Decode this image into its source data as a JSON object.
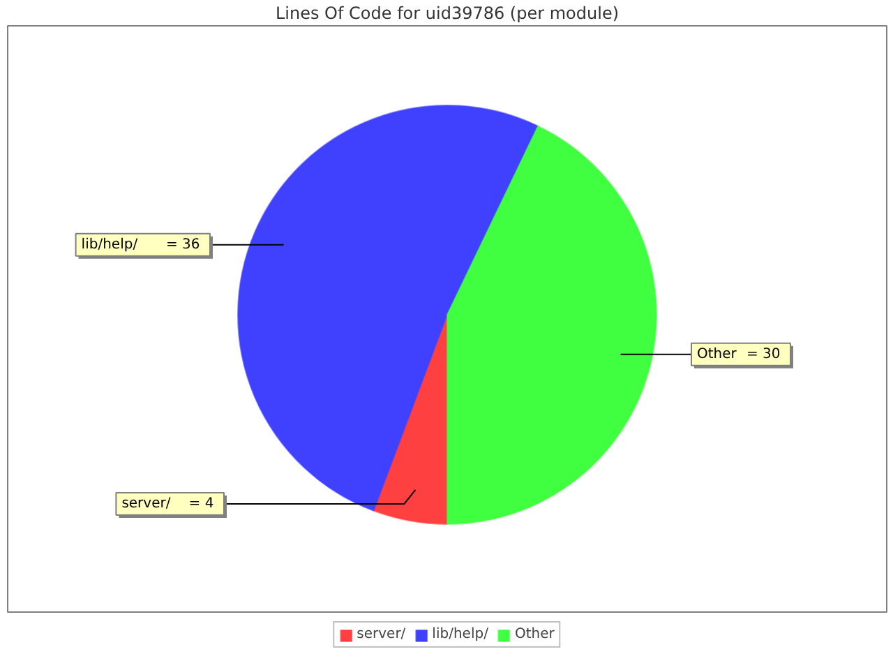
{
  "chart_data": {
    "type": "pie",
    "title": "Lines Of Code for uid39786 (per module)",
    "categories": [
      "server/",
      "lib/help/",
      "Other"
    ],
    "values": [
      4,
      36,
      30
    ],
    "value_labels": [
      "= 4",
      "= 36",
      "= 30"
    ],
    "colors": [
      "#ff4040",
      "#4040ff",
      "#40ff40"
    ],
    "legend": "bottom"
  }
}
